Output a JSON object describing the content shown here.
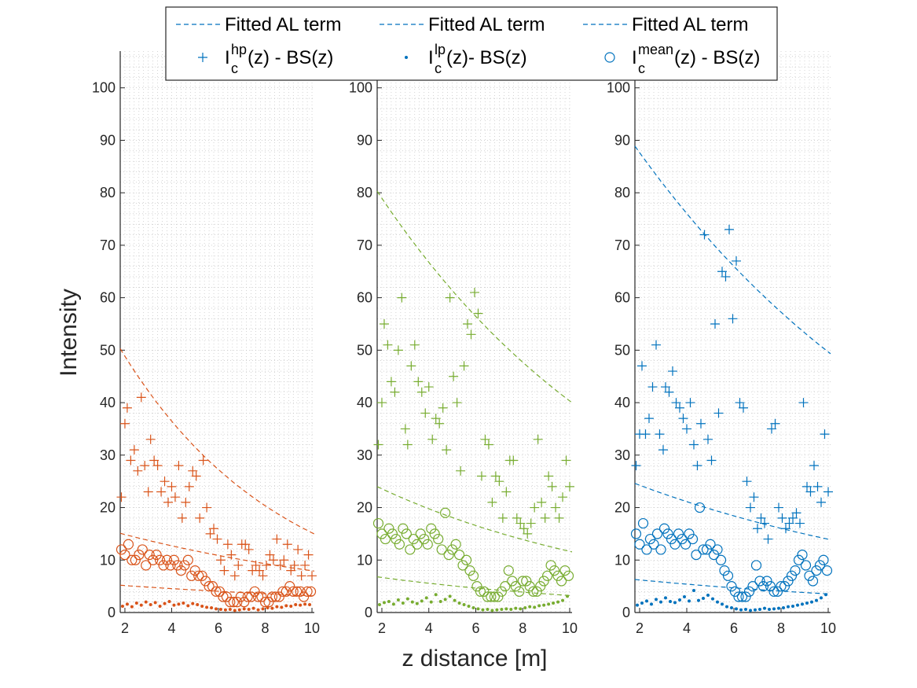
{
  "chart_data": {
    "type": "scatter",
    "ylabel": "Intensity",
    "xlabel": "z distance [m]",
    "xlim": [
      1.8,
      10.1
    ],
    "ylim": [
      0,
      107
    ],
    "xticks": [
      "2",
      "4",
      "6",
      "8",
      "10"
    ],
    "yticks": [
      "0",
      "10",
      "20",
      "30",
      "40",
      "50",
      "60",
      "70",
      "80",
      "90",
      "100"
    ],
    "grid": "minor-dotted",
    "legend": {
      "placement": "top",
      "entries": [
        {
          "text": "Fitted AL term",
          "marker": "dashed"
        },
        {
          "text": "Fitted AL term",
          "marker": "dashed"
        },
        {
          "text": "Fitted AL term",
          "marker": "dashed"
        },
        {
          "base": "I",
          "sup": "hp",
          "sub": "c",
          "suffix": "(z) - BS(z)",
          "marker": "plus"
        },
        {
          "base": "I",
          "sup": "lp",
          "sub": "c",
          "suffix": "(z)- BS(z)",
          "marker": "dot"
        },
        {
          "base": "I",
          "sup": "mean",
          "sub": "c",
          "suffix": "(z) - BS(z)",
          "marker": "circle"
        }
      ],
      "color": "#0072BD"
    },
    "panels": [
      {
        "color": "#D95319",
        "fits": [
          {
            "y0": 50.3,
            "decay": 0.146
          },
          {
            "y0": 15.1,
            "decay": 0.078
          },
          {
            "y0": 5.2,
            "decay": 0.06
          }
        ],
        "hp": {
          "x": [
            1.85,
            2.0,
            2.1,
            2.25,
            2.4,
            2.55,
            2.7,
            2.85,
            3.0,
            3.1,
            3.25,
            3.4,
            3.55,
            3.7,
            3.85,
            4.0,
            4.15,
            4.3,
            4.45,
            4.6,
            4.75,
            4.9,
            5.05,
            5.2,
            5.35,
            5.5,
            5.65,
            5.8,
            5.95,
            6.1,
            6.25,
            6.4,
            6.55,
            6.7,
            6.85,
            7.0,
            7.15,
            7.3,
            7.45,
            7.6,
            7.75,
            7.9,
            8.05,
            8.2,
            8.35,
            8.5,
            8.65,
            8.8,
            8.95,
            9.1,
            9.25,
            9.4,
            9.55,
            9.7,
            9.85,
            10.0
          ],
          "y": [
            22,
            36,
            39,
            29,
            31,
            27,
            41,
            28,
            23,
            33,
            29,
            28,
            23,
            25,
            21,
            24,
            22,
            28,
            18,
            21,
            24,
            27,
            26,
            18,
            29,
            20,
            15,
            16,
            14,
            10,
            8,
            13,
            11,
            7,
            9,
            13,
            13,
            12,
            8,
            9,
            8,
            7,
            9,
            11,
            10,
            14,
            9,
            10,
            13,
            8,
            9,
            12,
            7,
            9,
            11,
            7
          ]
        },
        "lp": {
          "x": [
            1.9,
            2.1,
            2.3,
            2.5,
            2.7,
            2.9,
            3.1,
            3.3,
            3.5,
            3.7,
            3.9,
            4.1,
            4.3,
            4.5,
            4.7,
            4.9,
            5.1,
            5.3,
            5.5,
            5.7,
            5.9,
            6.1,
            6.3,
            6.5,
            6.7,
            6.9,
            7.1,
            7.3,
            7.5,
            7.7,
            7.9,
            8.1,
            8.3,
            8.5,
            8.7,
            8.9,
            9.1,
            9.3,
            9.5,
            9.7,
            9.9
          ],
          "y": [
            1.2,
            1.6,
            1.1,
            1.8,
            1.4,
            2.0,
            1.5,
            1.9,
            1.2,
            1.7,
            2.1,
            1.4,
            1.6,
            1.8,
            1.3,
            1.7,
            1.5,
            1.2,
            1.0,
            0.9,
            0.7,
            0.6,
            0.5,
            0.6,
            0.4,
            0.5,
            0.7,
            0.6,
            0.8,
            0.5,
            0.7,
            0.9,
            0.8,
            1.1,
            1.0,
            1.3,
            1.2,
            1.5,
            1.4,
            1.6,
            1.5
          ]
        },
        "mean": {
          "x": [
            1.85,
            2.0,
            2.15,
            2.3,
            2.45,
            2.6,
            2.75,
            2.9,
            3.05,
            3.2,
            3.35,
            3.5,
            3.65,
            3.8,
            3.95,
            4.1,
            4.25,
            4.4,
            4.55,
            4.7,
            4.85,
            5.0,
            5.15,
            5.3,
            5.45,
            5.6,
            5.75,
            5.9,
            6.05,
            6.2,
            6.35,
            6.5,
            6.65,
            6.8,
            6.95,
            7.1,
            7.25,
            7.4,
            7.55,
            7.7,
            7.85,
            8.0,
            8.15,
            8.3,
            8.45,
            8.6,
            8.75,
            8.9,
            9.05,
            9.2,
            9.35,
            9.5,
            9.65,
            9.8,
            9.95
          ],
          "y": [
            12,
            11,
            13,
            10,
            10,
            11,
            12,
            9,
            11,
            10,
            11,
            10,
            9,
            10,
            9,
            10,
            9,
            8,
            9,
            10,
            7,
            8,
            7,
            7,
            6,
            5,
            5,
            4,
            4,
            3,
            3,
            2,
            2,
            2,
            3,
            2,
            3,
            3,
            4,
            3,
            3,
            2,
            2,
            3,
            3,
            3,
            4,
            4,
            5,
            4,
            4,
            4,
            3,
            4,
            4
          ]
        }
      },
      {
        "color": "#77AC30",
        "fits": [
          {
            "y0": 80.3,
            "decay": 0.084
          },
          {
            "y0": 24.0,
            "decay": 0.088
          },
          {
            "y0": 6.8,
            "decay": 0.09
          }
        ],
        "hp": {
          "x": [
            1.85,
            2.0,
            2.1,
            2.25,
            2.4,
            2.55,
            2.7,
            2.85,
            3.0,
            3.1,
            3.25,
            3.4,
            3.55,
            3.7,
            3.85,
            4.0,
            4.15,
            4.3,
            4.45,
            4.6,
            4.75,
            4.9,
            5.05,
            5.2,
            5.35,
            5.5,
            5.65,
            5.8,
            5.95,
            6.1,
            6.25,
            6.4,
            6.55,
            6.7,
            6.85,
            7.0,
            7.15,
            7.3,
            7.45,
            7.6,
            7.75,
            7.9,
            8.05,
            8.2,
            8.35,
            8.5,
            8.65,
            8.8,
            8.95,
            9.1,
            9.25,
            9.4,
            9.55,
            9.7,
            9.85,
            10.0
          ],
          "y": [
            32,
            40,
            55,
            51,
            44,
            42,
            50,
            60,
            35,
            32,
            47,
            51,
            44,
            42,
            38,
            43,
            33,
            37,
            36,
            39,
            31,
            60,
            45,
            40,
            27,
            47,
            55,
            53,
            61,
            57,
            26,
            33,
            32,
            21,
            26,
            25,
            18,
            23,
            29,
            29,
            18,
            17,
            16,
            15,
            17,
            20,
            33,
            21,
            18,
            26,
            24,
            20,
            18,
            22,
            29,
            24
          ]
        },
        "lp": {
          "x": [
            1.9,
            2.1,
            2.3,
            2.5,
            2.7,
            2.9,
            3.1,
            3.3,
            3.5,
            3.7,
            3.9,
            4.1,
            4.3,
            4.5,
            4.7,
            4.9,
            5.1,
            5.3,
            5.5,
            5.7,
            5.9,
            6.1,
            6.3,
            6.5,
            6.7,
            6.9,
            7.1,
            7.3,
            7.5,
            7.7,
            7.9,
            8.1,
            8.3,
            8.5,
            8.7,
            8.9,
            9.1,
            9.3,
            9.5,
            9.7,
            9.9
          ],
          "y": [
            1.5,
            1.9,
            2.1,
            1.6,
            2.4,
            1.8,
            2.6,
            2.0,
            1.7,
            2.2,
            2.8,
            2.0,
            3.4,
            2.1,
            2.5,
            3.1,
            2.3,
            1.8,
            1.5,
            1.2,
            0.9,
            0.7,
            0.5,
            0.6,
            0.4,
            0.5,
            0.6,
            0.7,
            0.6,
            0.8,
            0.7,
            0.9,
            1.1,
            1.0,
            1.3,
            1.4,
            1.6,
            1.8,
            2.0,
            2.3,
            3.1
          ]
        },
        "mean": {
          "x": [
            1.85,
            2.0,
            2.15,
            2.3,
            2.45,
            2.6,
            2.75,
            2.9,
            3.05,
            3.2,
            3.35,
            3.5,
            3.65,
            3.8,
            3.95,
            4.1,
            4.25,
            4.4,
            4.55,
            4.7,
            4.85,
            5.0,
            5.15,
            5.3,
            5.45,
            5.6,
            5.75,
            5.9,
            6.05,
            6.2,
            6.35,
            6.5,
            6.65,
            6.8,
            6.95,
            7.1,
            7.25,
            7.4,
            7.55,
            7.7,
            7.85,
            8.0,
            8.15,
            8.3,
            8.45,
            8.6,
            8.75,
            8.9,
            9.05,
            9.2,
            9.35,
            9.5,
            9.65,
            9.8,
            9.95
          ],
          "y": [
            17,
            15,
            14,
            16,
            15,
            14,
            13,
            16,
            15,
            12,
            14,
            13,
            15,
            14,
            13,
            16,
            15,
            14,
            12,
            19,
            11,
            12,
            13,
            11,
            9,
            10,
            8,
            7,
            5,
            4,
            4,
            3,
            3,
            3,
            3,
            4,
            5,
            8,
            6,
            5,
            4,
            6,
            6,
            5,
            4,
            4,
            5,
            6,
            7,
            9,
            8,
            7,
            6,
            8,
            7
          ]
        }
      },
      {
        "color": "#0072BD",
        "fits": [
          {
            "y0": 88.9,
            "decay": 0.071
          },
          {
            "y0": 24.6,
            "decay": 0.069
          },
          {
            "y0": 6.3,
            "decay": 0.07
          }
        ],
        "hp": {
          "x": [
            1.85,
            2.0,
            2.1,
            2.25,
            2.4,
            2.55,
            2.7,
            2.85,
            3.0,
            3.1,
            3.25,
            3.4,
            3.55,
            3.7,
            3.85,
            4.0,
            4.15,
            4.3,
            4.45,
            4.6,
            4.75,
            4.9,
            5.05,
            5.2,
            5.35,
            5.5,
            5.65,
            5.8,
            5.95,
            6.1,
            6.25,
            6.4,
            6.55,
            6.7,
            6.85,
            7.0,
            7.15,
            7.3,
            7.45,
            7.6,
            7.75,
            7.9,
            8.05,
            8.2,
            8.35,
            8.5,
            8.65,
            8.8,
            8.95,
            9.1,
            9.25,
            9.4,
            9.55,
            9.7,
            9.85,
            10.0
          ],
          "y": [
            28,
            34,
            47,
            34,
            37,
            43,
            51,
            34,
            31,
            43,
            42,
            46,
            40,
            39,
            37,
            35,
            40,
            32,
            28,
            36,
            72,
            33,
            29,
            55,
            38,
            65,
            64,
            73,
            56,
            67,
            40,
            39,
            25,
            20,
            22,
            16,
            18,
            17,
            14,
            35,
            36,
            20,
            18,
            16,
            17,
            18,
            19,
            17,
            40,
            24,
            23,
            28,
            24,
            21,
            34,
            23
          ]
        },
        "lp": {
          "x": [
            1.9,
            2.1,
            2.3,
            2.5,
            2.7,
            2.9,
            3.1,
            3.3,
            3.5,
            3.7,
            3.9,
            4.1,
            4.3,
            4.5,
            4.7,
            4.9,
            5.1,
            5.3,
            5.5,
            5.7,
            5.9,
            6.1,
            6.3,
            6.5,
            6.7,
            6.9,
            7.1,
            7.3,
            7.5,
            7.7,
            7.9,
            8.1,
            8.3,
            8.5,
            8.7,
            8.9,
            9.1,
            9.3,
            9.5,
            9.7,
            9.9
          ],
          "y": [
            1.4,
            1.8,
            2.2,
            1.6,
            2.5,
            2.0,
            2.8,
            2.1,
            1.9,
            2.4,
            3.0,
            2.2,
            4.2,
            2.3,
            2.7,
            3.3,
            2.6,
            2.0,
            1.6,
            1.1,
            0.9,
            0.7,
            0.5,
            0.6,
            0.4,
            0.5,
            0.6,
            0.8,
            0.6,
            0.7,
            0.8,
            0.9,
            1.1,
            1.2,
            1.4,
            1.6,
            1.8,
            2.0,
            2.3,
            2.8,
            3.4
          ]
        },
        "mean": {
          "x": [
            1.85,
            2.0,
            2.15,
            2.3,
            2.45,
            2.6,
            2.75,
            2.9,
            3.05,
            3.2,
            3.35,
            3.5,
            3.65,
            3.8,
            3.95,
            4.1,
            4.25,
            4.4,
            4.55,
            4.7,
            4.85,
            5.0,
            5.15,
            5.3,
            5.45,
            5.6,
            5.75,
            5.9,
            6.05,
            6.2,
            6.35,
            6.5,
            6.65,
            6.8,
            6.95,
            7.1,
            7.25,
            7.4,
            7.55,
            7.7,
            7.85,
            8.0,
            8.15,
            8.3,
            8.45,
            8.6,
            8.75,
            8.9,
            9.05,
            9.2,
            9.35,
            9.5,
            9.65,
            9.8,
            9.95
          ],
          "y": [
            15,
            13,
            17,
            12,
            14,
            13,
            15,
            12,
            16,
            15,
            14,
            13,
            15,
            14,
            13,
            15,
            14,
            11,
            20,
            12,
            12,
            13,
            11,
            12,
            10,
            8,
            7,
            5,
            4,
            3,
            3,
            3,
            4,
            5,
            9,
            6,
            5,
            6,
            5,
            4,
            4,
            5,
            5,
            6,
            7,
            8,
            10,
            11,
            9,
            7,
            6,
            8,
            9,
            10,
            8
          ]
        }
      }
    ]
  }
}
